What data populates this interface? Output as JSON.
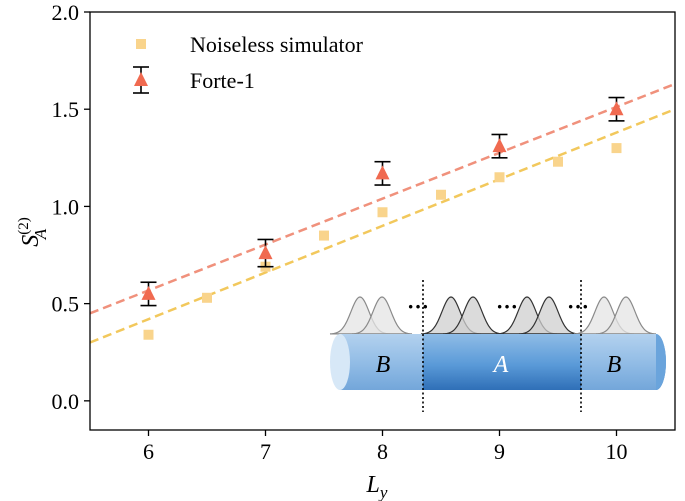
{
  "chart_data": {
    "type": "scatter",
    "title": "",
    "xlabel": "L",
    "xlabel_sub": "y",
    "ylabel": "S",
    "ylabel_sub": "A",
    "ylabel_sup": "(2)",
    "xlim": [
      5.5,
      10.5
    ],
    "ylim": [
      -0.15,
      2.0
    ],
    "xticks": [
      "6",
      "7",
      "8",
      "9",
      "10"
    ],
    "yticks": [
      "0.0",
      "0.5",
      "1.0",
      "1.5",
      "2.0"
    ],
    "grid": false,
    "legend_position": "top-left",
    "series": [
      {
        "name": "Noiseless simulator",
        "marker": "square",
        "color": "#f9d48c",
        "fit_color": "#f2c85c",
        "x": [
          6,
          6.5,
          7,
          7.5,
          8,
          8.5,
          9,
          9.5,
          10
        ],
        "y": [
          0.34,
          0.53,
          0.69,
          0.85,
          0.97,
          1.06,
          1.15,
          1.23,
          1.3
        ],
        "fit": {
          "x": [
            5.5,
            10.5
          ],
          "y": [
            0.3,
            1.5
          ]
        }
      },
      {
        "name": "Forte-1",
        "marker": "triangle",
        "color": "#f06a50",
        "fit_color": "#f0917c",
        "x": [
          6,
          7,
          8,
          9,
          10
        ],
        "y": [
          0.55,
          0.76,
          1.17,
          1.31,
          1.5
        ],
        "yerr": [
          0.06,
          0.07,
          0.06,
          0.06,
          0.06
        ],
        "fit": {
          "x": [
            5.5,
            10.5
          ],
          "y": [
            0.45,
            1.63
          ]
        }
      }
    ],
    "inset": {
      "labels": [
        "B",
        "A",
        "B"
      ],
      "dots": [
        "···",
        "···",
        "···"
      ]
    }
  }
}
